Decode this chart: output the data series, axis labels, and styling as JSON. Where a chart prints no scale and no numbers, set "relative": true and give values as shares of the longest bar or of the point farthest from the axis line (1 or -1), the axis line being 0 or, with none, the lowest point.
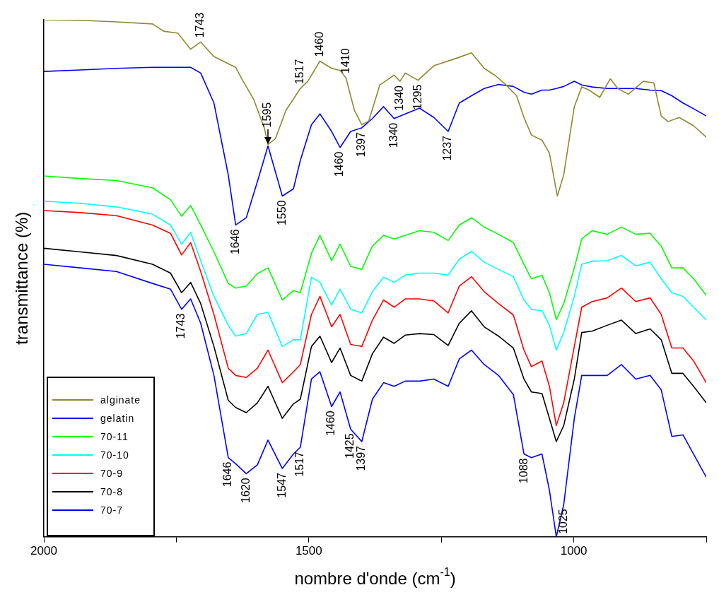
{
  "chart_data": {
    "type": "line",
    "xlabel": "nombre d'onde (cm$^{-1}$)",
    "ylabel": "transmittance (%)",
    "relative": true,
    "xlim": [
      2000,
      750
    ],
    "xticks": [
      2000,
      {
        "value": 1750,
        "label": null
      },
      1500,
      {
        "value": 1250,
        "label": null
      },
      1000,
      {
        "value": 750,
        "label": null
      }
    ],
    "grid": false,
    "marker": "none",
    "line_style": "solid",
    "legend": "bottom left",
    "x": [
      2000,
      1931,
      1863,
      1795,
      1761,
      1740,
      1723,
      1704,
      1679,
      1652,
      1638,
      1618,
      1597,
      1577,
      1550,
      1529,
      1516,
      1495,
      1479,
      1457,
      1441,
      1421,
      1400,
      1380,
      1359,
      1339,
      1318,
      1291,
      1264,
      1237,
      1216,
      1193,
      1169,
      1142,
      1114,
      1094,
      1080,
      1060,
      1046,
      1033,
      1019,
      999,
      985,
      965,
      937,
      910,
      883,
      856,
      835,
      815,
      794,
      774,
      750
    ],
    "series": [
      {
        "name": "alginate",
        "color": "#8c8a30",
        "x": [
          2000,
          1931,
          1863,
          1795,
          1774,
          1747,
          1723,
          1704,
          1679,
          1652,
          1638,
          1625,
          1604,
          1584,
          1577,
          1563,
          1543,
          1516,
          1502,
          1479,
          1457,
          1441,
          1430,
          1414,
          1400,
          1387,
          1366,
          1353,
          1339,
          1328,
          1318,
          1294,
          1264,
          1223,
          1193,
          1169,
          1148,
          1128,
          1108,
          1094,
          1080,
          1060,
          1046,
          1031,
          1019,
          999,
          985,
          971,
          951,
          931,
          917,
          897,
          869,
          849,
          835,
          822,
          801,
          774,
          750
        ],
        "values": [
          1.0,
          0.999,
          0.996,
          0.992,
          0.978,
          0.974,
          0.943,
          0.957,
          0.929,
          0.915,
          0.908,
          0.883,
          0.846,
          0.791,
          0.759,
          0.77,
          0.825,
          0.867,
          0.881,
          0.92,
          0.906,
          0.902,
          0.888,
          0.825,
          0.797,
          0.804,
          0.874,
          0.883,
          0.893,
          0.881,
          0.897,
          0.883,
          0.911,
          0.925,
          0.936,
          0.906,
          0.892,
          0.874,
          0.853,
          0.811,
          0.777,
          0.767,
          0.742,
          0.659,
          0.7,
          0.832,
          0.87,
          0.864,
          0.85,
          0.886,
          0.867,
          0.856,
          0.881,
          0.878,
          0.814,
          0.803,
          0.811,
          0.795,
          0.773
        ]
      },
      {
        "name": "gelatin",
        "color": "#0000ff",
        "values": [
          0.9,
          0.903,
          0.906,
          0.908,
          0.908,
          0.908,
          0.908,
          0.897,
          0.839,
          0.7,
          0.603,
          0.617,
          0.687,
          0.756,
          0.659,
          0.673,
          0.728,
          0.797,
          0.818,
          0.784,
          0.753,
          0.784,
          0.791,
          0.809,
          0.832,
          0.809,
          0.818,
          0.829,
          0.811,
          0.784,
          0.839,
          0.853,
          0.867,
          0.875,
          0.871,
          0.86,
          0.856,
          0.864,
          0.864,
          0.867,
          0.871,
          0.881,
          0.874,
          0.87,
          0.867,
          0.867,
          0.867,
          0.864,
          0.863,
          0.853,
          0.839,
          0.828,
          0.814
        ]
      },
      {
        "name": "70-11",
        "color": "#00ff00",
        "values": [
          0.698,
          0.693,
          0.689,
          0.675,
          0.652,
          0.62,
          0.641,
          0.603,
          0.551,
          0.49,
          0.481,
          0.485,
          0.509,
          0.52,
          0.458,
          0.476,
          0.472,
          0.548,
          0.583,
          0.534,
          0.566,
          0.523,
          0.517,
          0.562,
          0.583,
          0.576,
          0.583,
          0.592,
          0.589,
          0.573,
          0.603,
          0.617,
          0.599,
          0.585,
          0.569,
          0.527,
          0.499,
          0.506,
          0.472,
          0.42,
          0.451,
          0.52,
          0.576,
          0.592,
          0.585,
          0.599,
          0.585,
          0.587,
          0.562,
          0.52,
          0.52,
          0.499,
          0.467
        ]
      },
      {
        "name": "70-10",
        "color": "#00ffff",
        "values": [
          0.649,
          0.645,
          0.638,
          0.624,
          0.603,
          0.566,
          0.589,
          0.534,
          0.465,
          0.409,
          0.388,
          0.393,
          0.43,
          0.434,
          0.368,
          0.381,
          0.381,
          0.502,
          0.492,
          0.448,
          0.479,
          0.44,
          0.433,
          0.474,
          0.502,
          0.492,
          0.506,
          0.51,
          0.51,
          0.506,
          0.537,
          0.552,
          0.531,
          0.517,
          0.503,
          0.458,
          0.44,
          0.437,
          0.409,
          0.361,
          0.395,
          0.465,
          0.527,
          0.533,
          0.534,
          0.544,
          0.524,
          0.531,
          0.499,
          0.472,
          0.465,
          0.444,
          0.419
        ]
      },
      {
        "name": "70-9",
        "color": "#ff0000",
        "values": [
          0.631,
          0.627,
          0.621,
          0.603,
          0.587,
          0.545,
          0.569,
          0.513,
          0.43,
          0.326,
          0.312,
          0.308,
          0.326,
          0.361,
          0.298,
          0.319,
          0.333,
          0.43,
          0.465,
          0.406,
          0.43,
          0.372,
          0.368,
          0.419,
          0.458,
          0.444,
          0.46,
          0.46,
          0.456,
          0.433,
          0.485,
          0.503,
          0.474,
          0.451,
          0.429,
          0.361,
          0.329,
          0.34,
          0.291,
          0.215,
          0.259,
          0.368,
          0.444,
          0.455,
          0.462,
          0.481,
          0.455,
          0.462,
          0.43,
          0.365,
          0.365,
          0.34,
          0.298
        ]
      },
      {
        "name": "70-8",
        "color": "#000000",
        "values": [
          0.558,
          0.551,
          0.544,
          0.527,
          0.51,
          0.472,
          0.492,
          0.451,
          0.368,
          0.264,
          0.25,
          0.24,
          0.259,
          0.291,
          0.229,
          0.257,
          0.266,
          0.368,
          0.388,
          0.337,
          0.365,
          0.312,
          0.301,
          0.354,
          0.386,
          0.374,
          0.39,
          0.393,
          0.391,
          0.37,
          0.413,
          0.437,
          0.406,
          0.388,
          0.365,
          0.305,
          0.28,
          0.277,
          0.229,
          0.184,
          0.215,
          0.305,
          0.395,
          0.398,
          0.409,
          0.419,
          0.393,
          0.402,
          0.381,
          0.316,
          0.316,
          0.291,
          0.259
        ]
      },
      {
        "name": "70-7",
        "color": "#0000ff",
        "values": [
          0.527,
          0.52,
          0.513,
          0.49,
          0.479,
          0.44,
          0.46,
          0.413,
          0.312,
          0.153,
          0.141,
          0.122,
          0.139,
          0.187,
          0.132,
          0.16,
          0.173,
          0.305,
          0.319,
          0.252,
          0.28,
          0.208,
          0.184,
          0.266,
          0.298,
          0.291,
          0.301,
          0.301,
          0.305,
          0.291,
          0.344,
          0.361,
          0.333,
          0.312,
          0.275,
          0.16,
          0.153,
          0.16,
          0.09,
          0.0,
          0.062,
          0.229,
          0.312,
          0.312,
          0.312,
          0.333,
          0.305,
          0.312,
          0.284,
          0.194,
          0.197,
          0.16,
          0.115
        ]
      }
    ],
    "annotations": [
      {
        "text": "1743",
        "x": 1704,
        "y": 0.957
      },
      {
        "text": "1595",
        "x": 1577,
        "y": 0.756
      },
      {
        "text": "1646",
        "x": 1638,
        "y": 0.603
      },
      {
        "text": "1550",
        "x": 1550,
        "y": 0.659
      },
      {
        "text": "1517",
        "x": 1516,
        "y": 0.867
      },
      {
        "text": "1460",
        "x": 1479,
        "y": 0.92
      },
      {
        "text": "1460",
        "x": 1441,
        "y": 0.753
      },
      {
        "text": "1410",
        "x": 1430,
        "y": 0.888
      },
      {
        "text": "1397",
        "x": 1400,
        "y": 0.791
      },
      {
        "text": "1340",
        "x": 1328,
        "y": 0.881
      },
      {
        "text": "1340",
        "x": 1339,
        "y": 0.809
      },
      {
        "text": "1295",
        "x": 1294,
        "y": 0.883
      },
      {
        "text": "1237",
        "x": 1237,
        "y": 0.784
      },
      {
        "text": "1743",
        "x": 1740,
        "y": 0.44
      },
      {
        "text": "1646",
        "x": 1652,
        "y": 0.153
      },
      {
        "text": "1620",
        "x": 1618,
        "y": 0.122
      },
      {
        "text": "1547",
        "x": 1550,
        "y": 0.132
      },
      {
        "text": "1517",
        "x": 1516,
        "y": 0.173
      },
      {
        "text": "1460",
        "x": 1457,
        "y": 0.252
      },
      {
        "text": "1425",
        "x": 1421,
        "y": 0.208
      },
      {
        "text": "1397",
        "x": 1400,
        "y": 0.184
      },
      {
        "text": "1088",
        "x": 1094,
        "y": 0.16
      },
      {
        "text": "1025",
        "x": 1019,
        "y": 0.062
      }
    ]
  }
}
